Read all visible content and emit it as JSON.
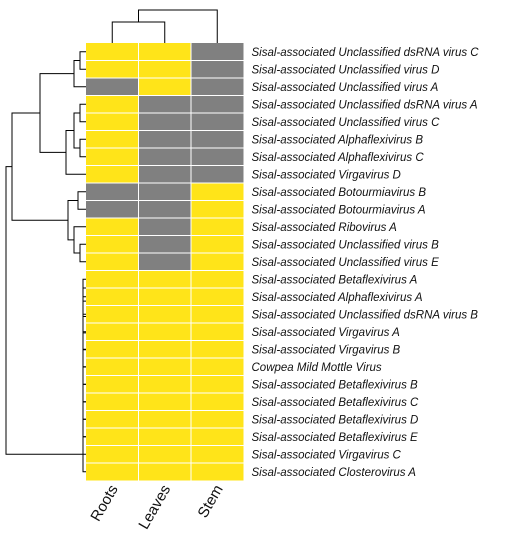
{
  "chart_data": {
    "type": "heatmap",
    "title": "",
    "columns": [
      "Roots",
      "Leaves",
      "Stem"
    ],
    "rows": [
      "Sisal-associated Unclassified dsRNA virus C",
      "Sisal-associated Unclassified virus D",
      "Sisal-associated Unclassified virus A",
      "Sisal-associated Unclassified dsRNA virus A",
      "Sisal-associated Unclassified virus C",
      "Sisal-associated Alphaflexivirus B",
      "Sisal-associated Alphaflexivirus C",
      "Sisal-associated Virgavirus D",
      "Sisal-associated Botourmiavirus B",
      "Sisal-associated Botourmiavirus A",
      "Sisal-associated Ribovirus A",
      "Sisal-associated Unclassified virus B",
      "Sisal-associated Unclassified virus E",
      "Sisal-associated Betaflexivirus A",
      "Sisal-associated Alphaflexivirus A",
      "Sisal-associated Unclassified dsRNA virus B",
      "Sisal-associated Virgavirus A",
      "Sisal-associated Virgavirus B",
      "Cowpea Mild Mottle Virus",
      "Sisal-associated Betaflexivirus B",
      "Sisal-associated Betaflexivirus C",
      "Sisal-associated Betaflexivirus D",
      "Sisal-associated Betaflexivirus E",
      "Sisal-associated Virgavirus C",
      "Sisal-associated Closterovirus A"
    ],
    "values": [
      [
        1,
        1,
        0
      ],
      [
        1,
        1,
        0
      ],
      [
        0,
        1,
        0
      ],
      [
        1,
        0,
        0
      ],
      [
        1,
        0,
        0
      ],
      [
        1,
        0,
        0
      ],
      [
        1,
        0,
        0
      ],
      [
        1,
        0,
        0
      ],
      [
        0,
        0,
        1
      ],
      [
        0,
        0,
        1
      ],
      [
        1,
        0,
        1
      ],
      [
        1,
        0,
        1
      ],
      [
        1,
        0,
        1
      ],
      [
        1,
        1,
        1
      ],
      [
        1,
        1,
        1
      ],
      [
        1,
        1,
        1
      ],
      [
        1,
        1,
        1
      ],
      [
        1,
        1,
        1
      ],
      [
        1,
        1,
        1
      ],
      [
        1,
        1,
        1
      ],
      [
        1,
        1,
        1
      ],
      [
        1,
        1,
        1
      ],
      [
        1,
        1,
        1
      ],
      [
        1,
        1,
        1
      ],
      [
        1,
        1,
        1
      ]
    ],
    "value_colors": {
      "1": "#FFE419",
      "0": "#808080"
    },
    "grid": true
  }
}
